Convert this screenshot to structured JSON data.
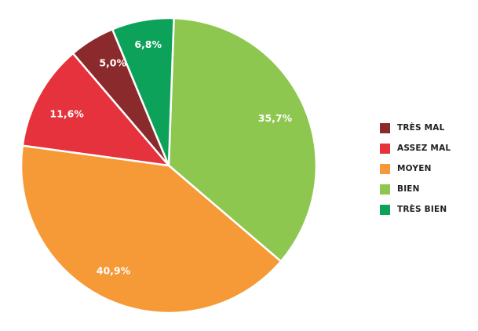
{
  "chart_data": {
    "type": "pie",
    "title": "",
    "legend_position": "right",
    "start_angle_deg": 2,
    "slices": [
      {
        "label": "BIEN",
        "value": 35.7,
        "value_label": "35,7%",
        "color": "#8dc74f"
      },
      {
        "label": "MOYEN",
        "value": 40.9,
        "value_label": "40,9%",
        "color": "#f59a36"
      },
      {
        "label": "ASSEZ MAL",
        "value": 11.6,
        "value_label": "11,6%",
        "color": "#e5323c"
      },
      {
        "label": "TRÈS MAL",
        "value": 5.0,
        "value_label": "5,0%",
        "color": "#8b2a2c"
      },
      {
        "label": "TRÈS BIEN",
        "value": 6.8,
        "value_label": "6,8%",
        "color": "#0ca25a"
      }
    ],
    "legend": [
      {
        "label": "TRÈS MAL",
        "color": "#8b2a2c"
      },
      {
        "label": "ASSEZ MAL",
        "color": "#e5323c"
      },
      {
        "label": "MOYEN",
        "color": "#f59a36"
      },
      {
        "label": "BIEN",
        "color": "#8dc74f"
      },
      {
        "label": "TRÈS BIEN",
        "color": "#0ca25a"
      }
    ]
  }
}
